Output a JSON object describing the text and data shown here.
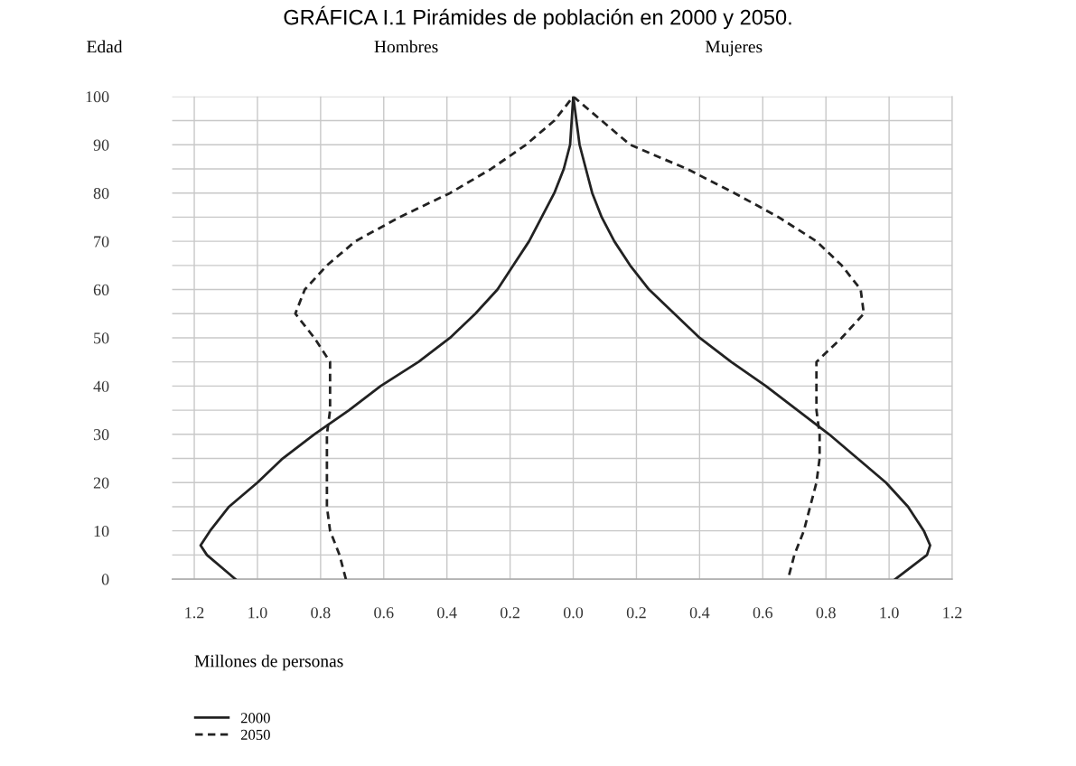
{
  "chart_data": {
    "type": "line",
    "title": "GRÁFICA I.1 Pirámides de población en 2000 y 2050.",
    "ylabel": "Edad",
    "xlabel": "Millones de personas",
    "annotations": [
      "Hombres",
      "Mujeres"
    ],
    "series": [
      {
        "name": "2000",
        "color": "#222222",
        "line_style": "solid",
        "x": [
          -1.07,
          -1.16,
          -1.18,
          -1.15,
          -1.09,
          -1.0,
          -0.92,
          -0.82,
          -0.71,
          -0.61,
          -0.49,
          -0.39,
          -0.31,
          -0.24,
          -0.19,
          -0.14,
          -0.1,
          -0.06,
          -0.03,
          -0.01,
          0,
          0.02,
          0.04,
          0.06,
          0.09,
          0.13,
          0.18,
          0.24,
          0.32,
          0.4,
          0.5,
          0.61,
          0.71,
          0.81,
          0.9,
          0.99,
          1.06,
          1.11,
          1.13,
          1.12,
          1.02
        ],
        "values": [
          0,
          5,
          7,
          10,
          15,
          20,
          25,
          30,
          35,
          40,
          45,
          50,
          55,
          60,
          65,
          70,
          75,
          80,
          85,
          90,
          100,
          90,
          85,
          80,
          75,
          70,
          65,
          60,
          55,
          50,
          45,
          40,
          35,
          30,
          25,
          20,
          15,
          10,
          7,
          5,
          0
        ]
      },
      {
        "name": "2050",
        "color": "#222222",
        "line_style": "dashed",
        "x": [
          -0.72,
          -0.74,
          -0.77,
          -0.78,
          -0.78,
          -0.78,
          -0.78,
          -0.77,
          -0.77,
          -0.77,
          -0.82,
          -0.88,
          -0.85,
          -0.78,
          -0.69,
          -0.55,
          -0.39,
          -0.26,
          -0.15,
          -0.06,
          0,
          0.09,
          0.18,
          0.36,
          0.51,
          0.65,
          0.77,
          0.85,
          0.91,
          0.92,
          0.85,
          0.77,
          0.77,
          0.77,
          0.78,
          0.78,
          0.77,
          0.75,
          0.73,
          0.7,
          0.68
        ],
        "values": [
          0,
          5,
          10,
          15,
          20,
          25,
          30,
          35,
          40,
          45,
          50,
          55,
          60,
          65,
          70,
          75,
          80,
          85,
          90,
          95,
          100,
          95,
          90,
          85,
          80,
          75,
          70,
          65,
          60,
          55,
          50,
          45,
          40,
          35,
          30,
          25,
          20,
          15,
          10,
          5,
          0
        ]
      }
    ],
    "xlim": [
      -1.27,
      1.2
    ],
    "xticks": [
      {
        "value": -1.2,
        "label": "1.2"
      },
      {
        "value": -1.0,
        "label": "1.0"
      },
      {
        "value": -0.8,
        "label": "0.8"
      },
      {
        "value": -0.6,
        "label": "0.6"
      },
      {
        "value": -0.4,
        "label": "0.4"
      },
      {
        "value": -0.2,
        "label": "0.2"
      },
      {
        "value": 0,
        "label": "0.0"
      },
      {
        "value": 0.2,
        "label": "0.2"
      },
      {
        "value": 0.4,
        "label": "0.4"
      },
      {
        "value": 0.6,
        "label": "0.6"
      },
      {
        "value": 0.8,
        "label": "0.8"
      },
      {
        "value": 1.0,
        "label": "1.0"
      },
      {
        "value": 1.2,
        "label": "1.2"
      }
    ],
    "ylim": [
      0,
      100
    ],
    "yticks": [
      0,
      {
        "value": 5,
        "label": null
      },
      10,
      {
        "value": 15,
        "label": null
      },
      20,
      {
        "value": 25,
        "label": null
      },
      30,
      {
        "value": 35,
        "label": null
      },
      40,
      {
        "value": 45,
        "label": null
      },
      50,
      {
        "value": 55,
        "label": null
      },
      60,
      {
        "value": 65,
        "label": null
      },
      70,
      {
        "value": 75,
        "label": null
      },
      80,
      {
        "value": 85,
        "label": null
      },
      90,
      {
        "value": 95,
        "label": null
      },
      100
    ],
    "grid": true,
    "legend": "bottom left",
    "marker": "none"
  }
}
